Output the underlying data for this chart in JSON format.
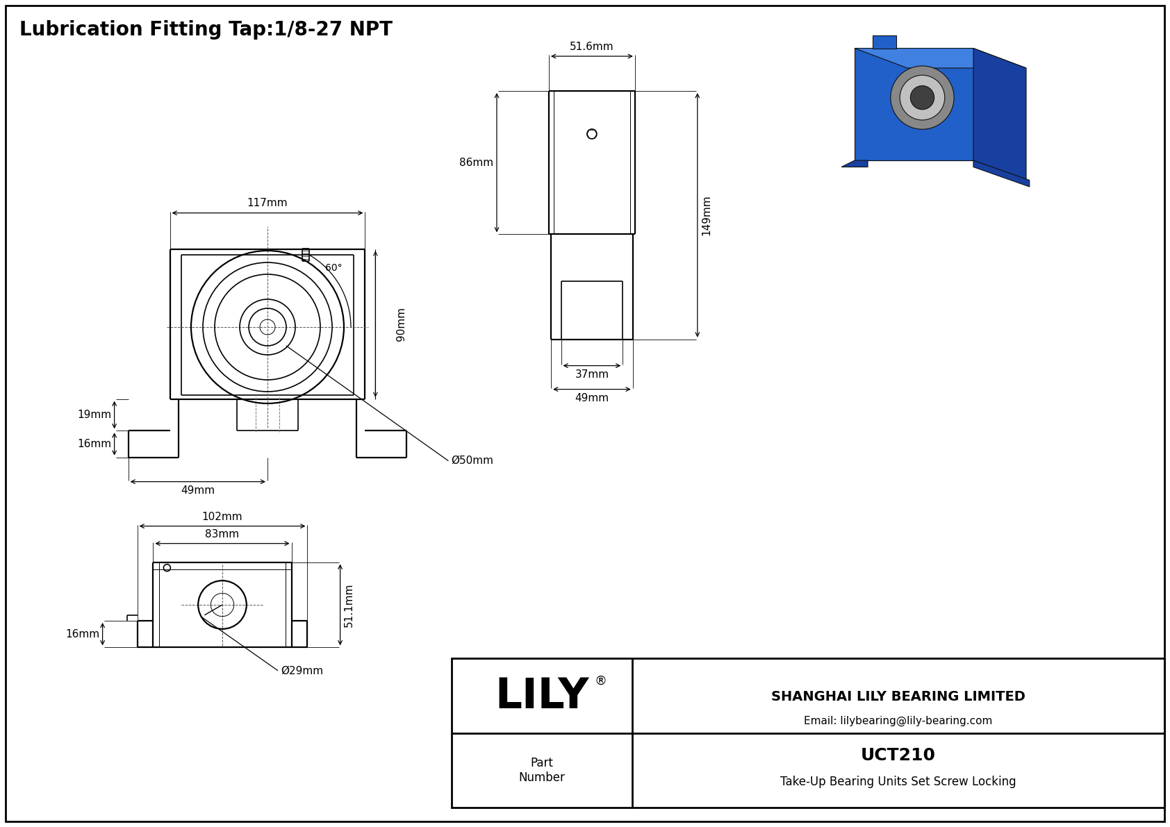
{
  "title": "Lubrication Fitting Tap:1/8-27 NPT",
  "bg_color": "#ffffff",
  "company": "SHANGHAI LILY BEARING LIMITED",
  "email": "Email: lilybearing@lily-bearing.com",
  "part_number_label": "Part\nNumber",
  "part_number": "UCT210",
  "description": "Take-Up Bearing Units Set Screw Locking",
  "brand": "LILY",
  "dim_117": "117mm",
  "dim_90": "90mm",
  "dim_19": "19mm",
  "dim_16a": "16mm",
  "dim_49": "49mm",
  "dim_50": "Ø50mm",
  "dim_60": "60°",
  "dim_516": "51.6mm",
  "dim_86": "86mm",
  "dim_149": "149mm",
  "dim_37": "37mm",
  "dim_49b": "49mm",
  "dim_102": "102mm",
  "dim_83": "83mm",
  "dim_511": "51.1mm",
  "dim_29": "Ø29mm",
  "dim_16b": "16mm"
}
